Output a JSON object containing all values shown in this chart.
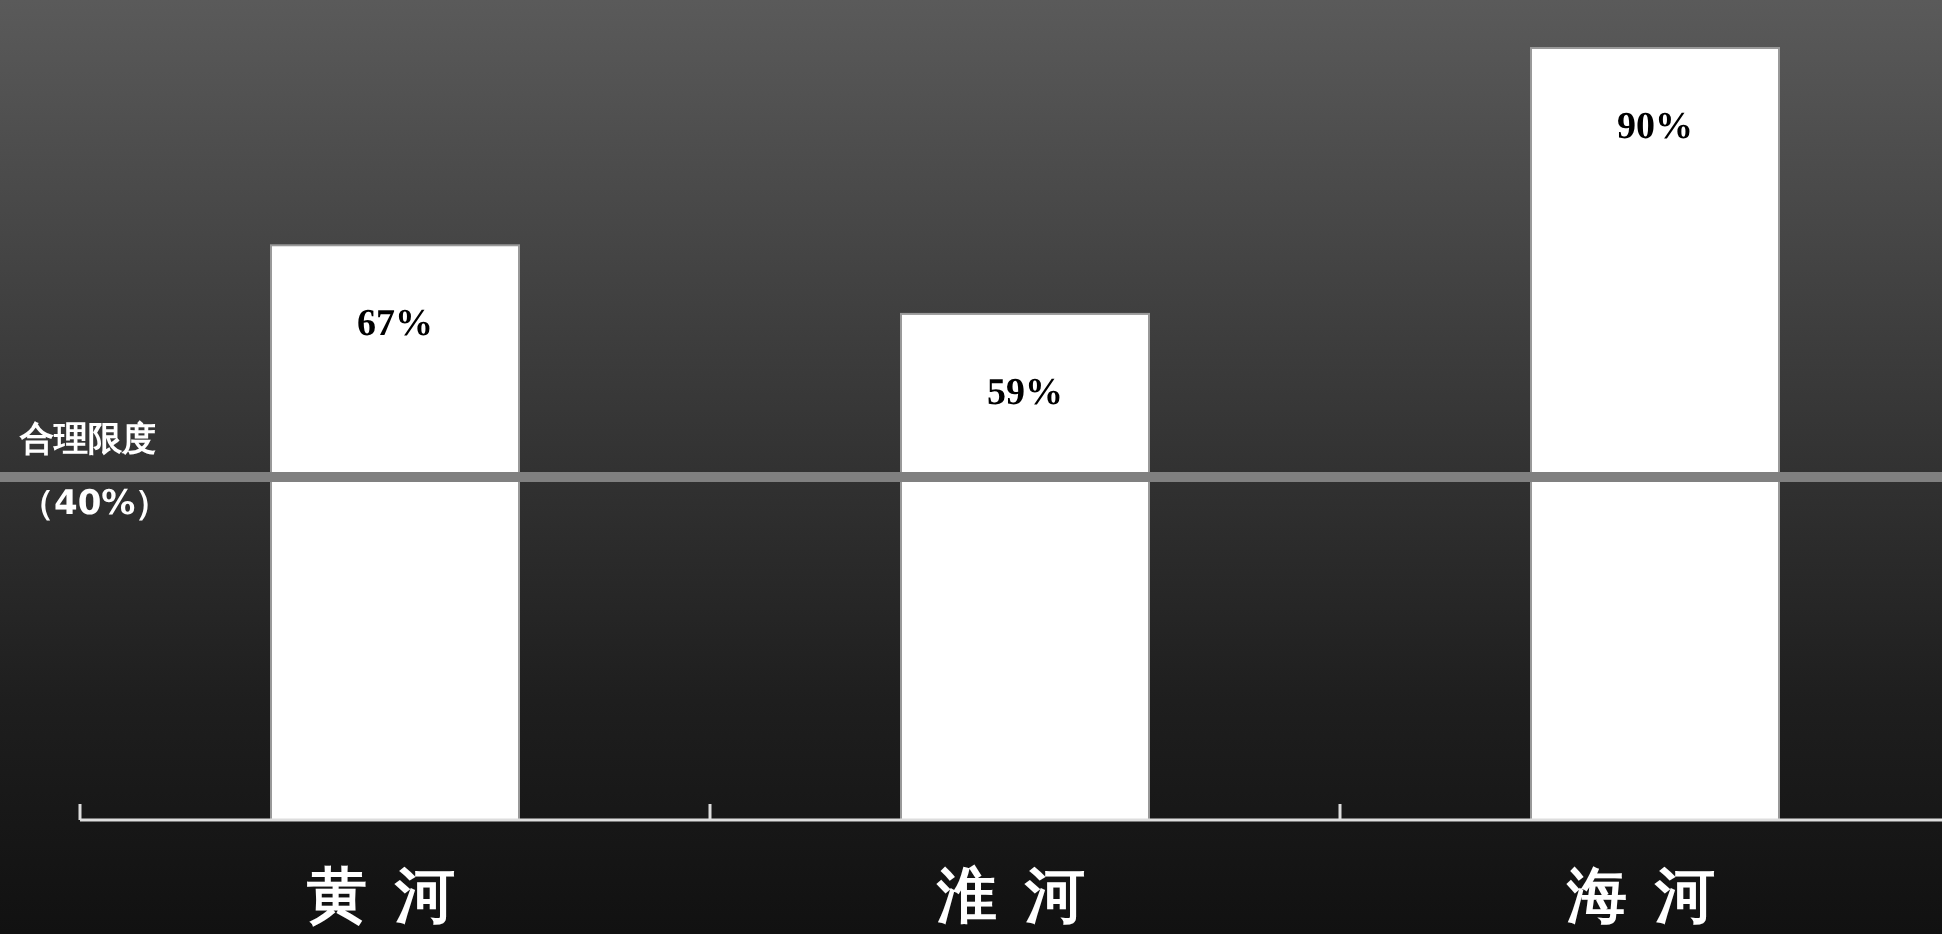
{
  "chart_data": {
    "type": "bar",
    "categories": [
      "黄河",
      "淮河",
      "海河"
    ],
    "values": [
      67,
      59,
      90
    ],
    "value_labels": [
      "67%",
      "59%",
      "90%"
    ],
    "color": "#ffffff",
    "tick_labels": "x",
    "ref_lines": [
      {
        "axis": "y",
        "value": 40,
        "label": "合理限度（40%）",
        "color": "#808080"
      }
    ]
  }
}
